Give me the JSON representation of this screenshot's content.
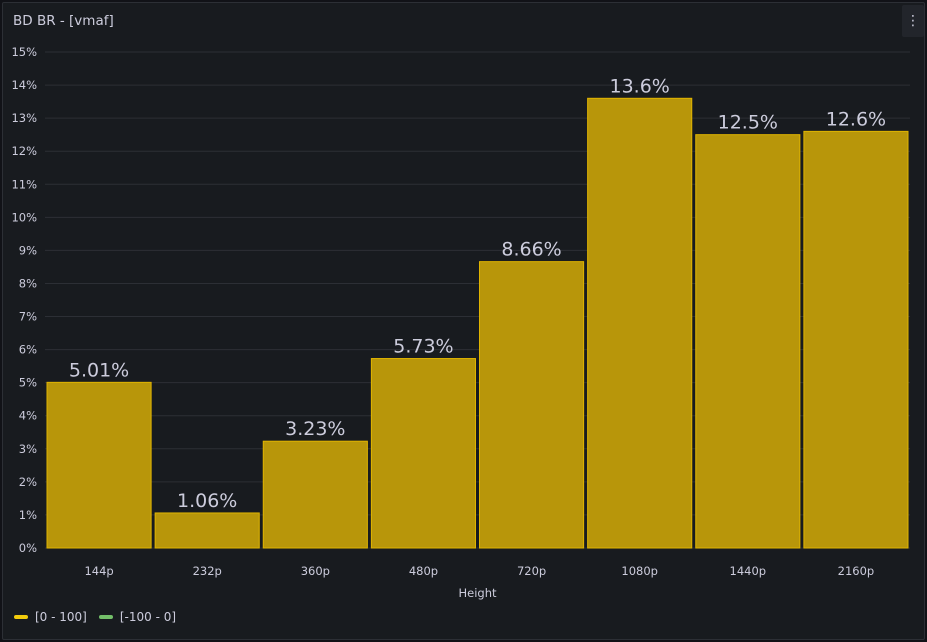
{
  "panel": {
    "title": "BD BR - [vmaf]",
    "menu_icon": "kebab-menu-icon"
  },
  "chart_data": {
    "type": "bar",
    "title": "BD BR - [vmaf]",
    "xlabel": "Height",
    "ylabel": "",
    "categories": [
      "144p",
      "232p",
      "360p",
      "480p",
      "720p",
      "1080p",
      "1440p",
      "2160p"
    ],
    "values": [
      5.01,
      1.06,
      3.23,
      5.73,
      8.66,
      13.6,
      12.5,
      12.6
    ],
    "value_labels": [
      "5.01%",
      "1.06%",
      "3.23%",
      "5.73%",
      "8.66%",
      "13.6%",
      "12.5%",
      "12.6%"
    ],
    "ylim": [
      0,
      15
    ],
    "yticks": [
      "0%",
      "1%",
      "2%",
      "3%",
      "4%",
      "5%",
      "6%",
      "7%",
      "8%",
      "9%",
      "10%",
      "11%",
      "12%",
      "13%",
      "14%",
      "15%"
    ],
    "grid": true,
    "legend_position": "bottom-left",
    "legend": [
      {
        "label": "[0 - 100]",
        "color": "#f2cc0c"
      },
      {
        "label": "[-100 - 0]",
        "color": "#73bf69"
      }
    ],
    "bar_fill": "#b8960a",
    "bar_border": "#e0b400"
  }
}
